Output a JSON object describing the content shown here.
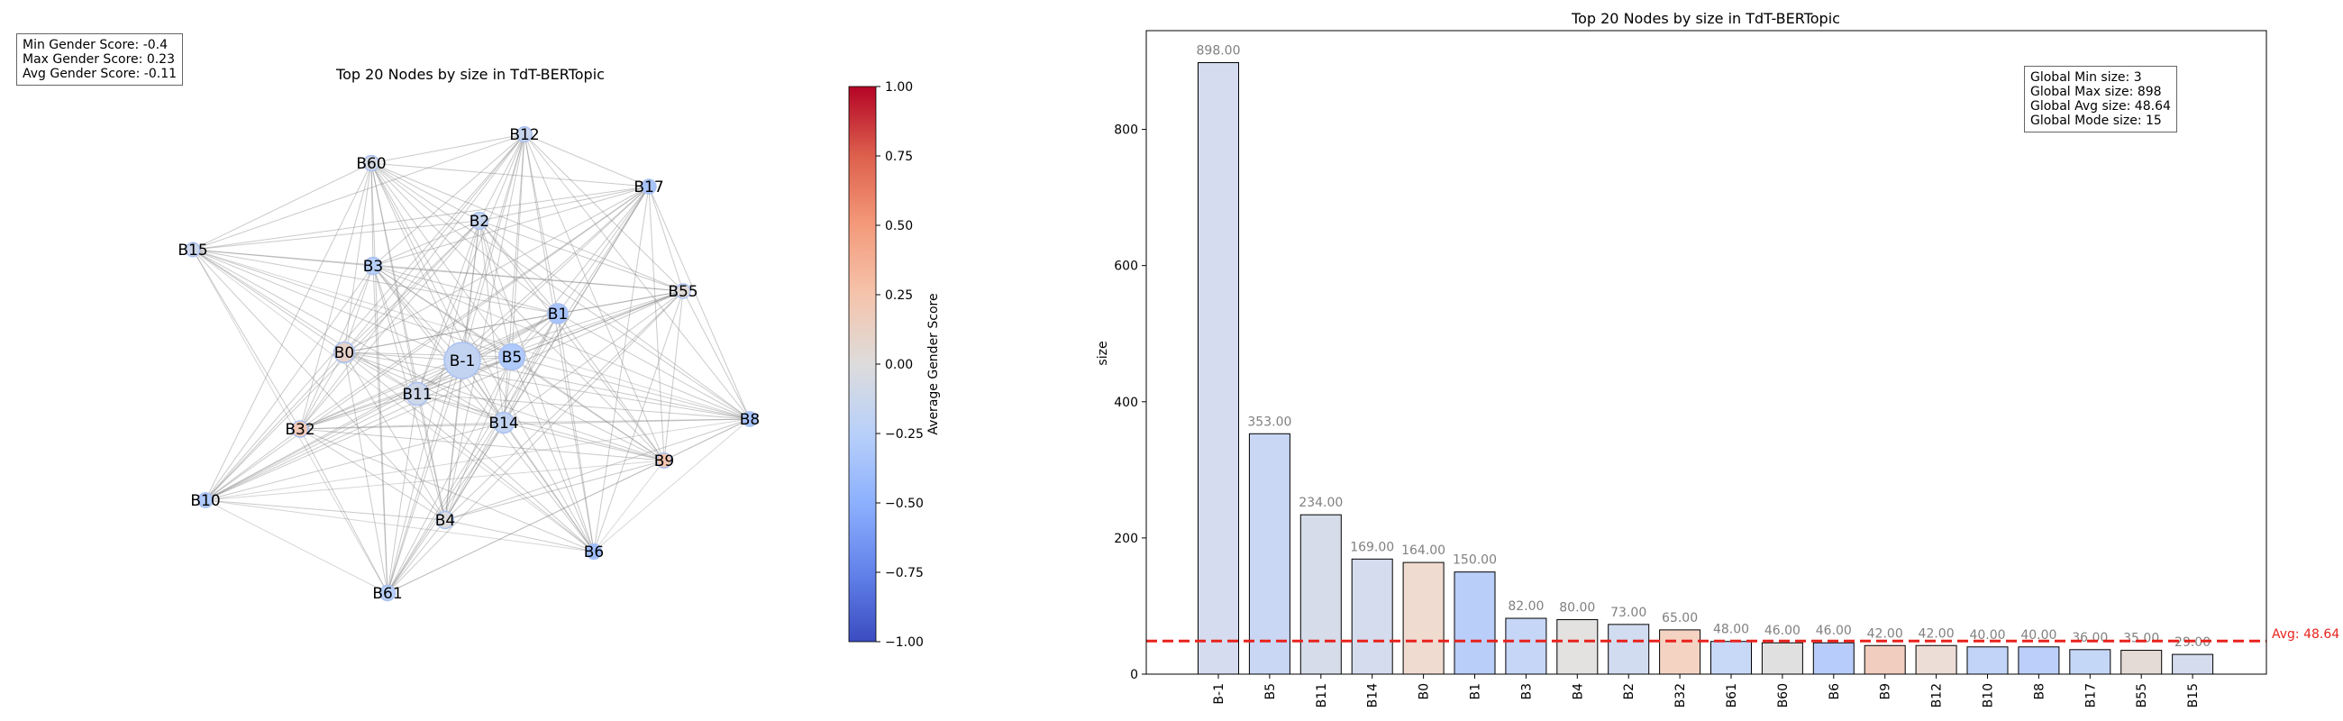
{
  "gender_stats": {
    "min": "Min Gender Score: -0.4",
    "max": "Max Gender Score: 0.23",
    "avg": "Avg Gender Score: -0.11"
  },
  "network": {
    "title": "Top 20 Nodes by size in TdT-BERTopic",
    "colorbar_label": "Average Gender Score",
    "colorbar_ticks": [
      "1.00",
      "0.75",
      "0.50",
      "0.25",
      "0.00",
      "−0.25",
      "−0.50",
      "−0.75",
      "−1.00"
    ],
    "nodes": [
      {
        "label": "B12",
        "score": -0.15,
        "size": 42
      },
      {
        "label": "B60",
        "score": -0.06,
        "size": 46
      },
      {
        "label": "B17",
        "score": -0.35,
        "size": 36
      },
      {
        "label": "B2",
        "score": -0.15,
        "size": 73
      },
      {
        "label": "B15",
        "score": -0.1,
        "size": 29
      },
      {
        "label": "B3",
        "score": -0.25,
        "size": 82
      },
      {
        "label": "B55",
        "score": 0.02,
        "size": 35
      },
      {
        "label": "B1",
        "score": -0.35,
        "size": 150
      },
      {
        "label": "B0",
        "score": 0.1,
        "size": 164
      },
      {
        "label": "B-1",
        "score": -0.18,
        "size": 898
      },
      {
        "label": "B5",
        "score": -0.3,
        "size": 353
      },
      {
        "label": "B11",
        "score": -0.1,
        "size": 234
      },
      {
        "label": "B8",
        "score": -0.35,
        "size": 40
      },
      {
        "label": "B32",
        "score": 0.2,
        "size": 65
      },
      {
        "label": "B14",
        "score": -0.18,
        "size": 169
      },
      {
        "label": "B9",
        "score": 0.23,
        "size": 42
      },
      {
        "label": "B10",
        "score": -0.3,
        "size": 40
      },
      {
        "label": "B4",
        "score": 0.0,
        "size": 80
      },
      {
        "label": "B6",
        "score": -0.4,
        "size": 46
      },
      {
        "label": "B61",
        "score": -0.25,
        "size": 48
      }
    ]
  },
  "stats_box": {
    "min": "Global Min size: 3",
    "max": "Global Max size: 898",
    "avg": "Global Avg size: 48.64",
    "mode": "Global Mode size: 15"
  },
  "chart_data": {
    "type": "bar",
    "title": "Top 20 Nodes by size in TdT-BERTopic",
    "xlabel": "",
    "ylabel": "size",
    "ylim": [
      0,
      945
    ],
    "yticks": [
      0,
      200,
      400,
      600,
      800
    ],
    "categories": [
      "B-1",
      "B5",
      "B11",
      "B14",
      "B0",
      "B1",
      "B3",
      "B4",
      "B2",
      "B32",
      "B61",
      "B60",
      "B6",
      "B9",
      "B12",
      "B10",
      "B8",
      "B17",
      "B55",
      "B15"
    ],
    "values": [
      898.0,
      353.0,
      234.0,
      169.0,
      164.0,
      150.0,
      82.0,
      80.0,
      73.0,
      65.0,
      48.0,
      46.0,
      46.0,
      42.0,
      42.0,
      40.0,
      40.0,
      36.0,
      35.0,
      29.0
    ],
    "value_labels": [
      "898.00",
      "353.00",
      "234.00",
      "169.00",
      "164.00",
      "150.00",
      "82.00",
      "80.00",
      "73.00",
      "65.00",
      "48.00",
      "46.00",
      "46.00",
      "42.00",
      "42.00",
      "40.00",
      "40.00",
      "36.00",
      "35.00",
      "29.00"
    ],
    "bar_colors": [
      "#d5dcef",
      "#c9d7f5",
      "#d6dcea",
      "#d4dcee",
      "#f0dbd1",
      "#b9cef9",
      "#c5d6f7",
      "#e3e2e1",
      "#d1dcf1",
      "#f4d3c3",
      "#c8d8f7",
      "#e1e0e0",
      "#b7ccfa",
      "#f1cdbf",
      "#ecddd6",
      "#c2d4f8",
      "#bccffa",
      "#c5d7f6",
      "#e4dbd6",
      "#d4dcee"
    ],
    "average_line": {
      "value": 48.64,
      "label": "Avg: 48.64",
      "color": "#e8221c"
    }
  }
}
